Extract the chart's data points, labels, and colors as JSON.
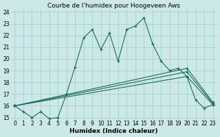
{
  "title": "Courbe de l'humidex pour Hoogeveen Aws",
  "xlabel": "Humidex (Indice chaleur)",
  "xlim": [
    -0.5,
    23.5
  ],
  "ylim": [
    14.8,
    24.2
  ],
  "xticks": [
    0,
    1,
    2,
    3,
    4,
    5,
    6,
    7,
    8,
    9,
    10,
    11,
    12,
    13,
    14,
    15,
    16,
    17,
    18,
    19,
    20,
    21,
    22,
    23
  ],
  "yticks": [
    15,
    16,
    17,
    18,
    19,
    20,
    21,
    22,
    23,
    24
  ],
  "bg_color": "#cce8e8",
  "line_color": "#1a6b5a",
  "grid_color": "#99cccc",
  "lines": [
    {
      "x": [
        0,
        1,
        2,
        3,
        4,
        5,
        6,
        7,
        8,
        9,
        10,
        11,
        12,
        13,
        14,
        15,
        16,
        17,
        18,
        19,
        20,
        21,
        22,
        23
      ],
      "y": [
        16,
        15.5,
        15,
        15.5,
        14.9,
        15,
        17,
        19.3,
        21.8,
        22.5,
        20.8,
        22.2,
        19.8,
        22.5,
        22.8,
        23.5,
        21.3,
        19.8,
        19.0,
        19.2,
        18.5,
        16.5,
        15.8,
        16.1
      ]
    },
    {
      "x": [
        0,
        20,
        23
      ],
      "y": [
        16,
        18.5,
        16.1
      ]
    },
    {
      "x": [
        0,
        20,
        23
      ],
      "y": [
        16,
        18.9,
        16.2
      ]
    },
    {
      "x": [
        0,
        20,
        23
      ],
      "y": [
        16,
        19.2,
        16.3
      ]
    }
  ],
  "title_fontsize": 6.5,
  "tick_fontsize": 5.5,
  "label_fontsize": 6.5,
  "label_fontweight": "bold"
}
